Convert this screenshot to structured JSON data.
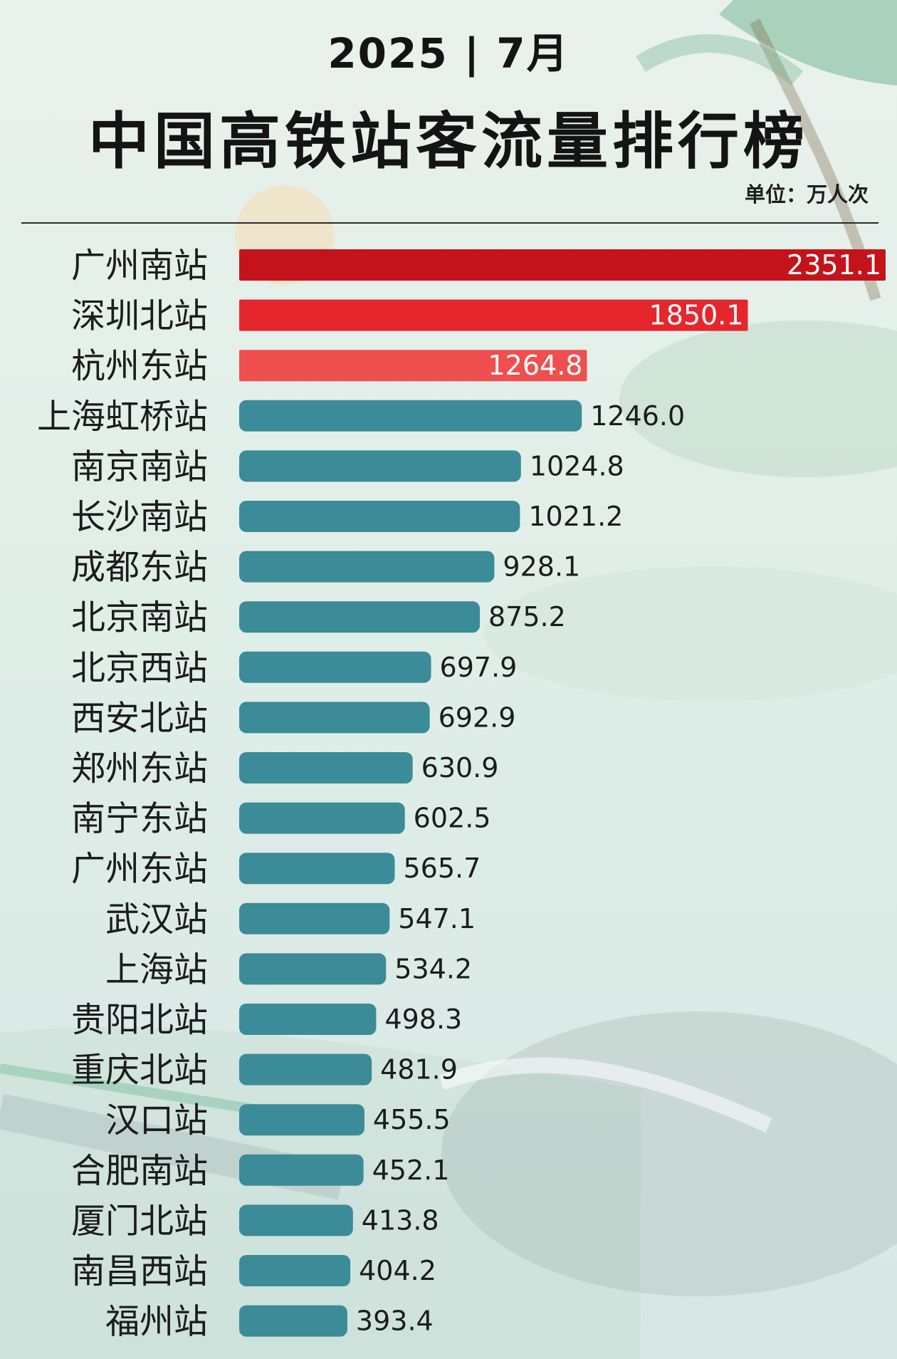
{
  "header": {
    "year_month": "2025 | 7月",
    "title": "中国高铁站客流量排行榜",
    "unit": "单位：万人次"
  },
  "colors": {
    "rank1": "#c5131c",
    "rank2": "#e5262d",
    "rank3": "#ef4f4f",
    "default": "#3c8b98",
    "label": "#1c1c1c",
    "value_dark": "#1c1c1c",
    "value_light": "#ffffff"
  },
  "chart_data": {
    "type": "bar",
    "orientation": "horizontal",
    "categories": [
      "广州南站",
      "深圳北站",
      "杭州东站",
      "上海虹桥站",
      "南京南站",
      "长沙南站",
      "成都东站",
      "北京南站",
      "北京西站",
      "西安北站",
      "郑州东站",
      "南宁东站",
      "广州东站",
      "武汉站",
      "上海站",
      "贵阳北站",
      "重庆北站",
      "汉口站",
      "合肥南站",
      "厦门北站",
      "南昌西站",
      "福州站"
    ],
    "values": [
      2351.1,
      1850.1,
      1264.8,
      1246.0,
      1024.8,
      1021.2,
      928.1,
      875.2,
      697.9,
      692.9,
      630.9,
      602.5,
      565.7,
      547.1,
      534.2,
      498.3,
      481.9,
      455.5,
      452.1,
      413.8,
      404.2,
      393.4
    ],
    "value_labels": [
      "2351.1",
      "1850.1",
      "1264.8",
      "1246.0",
      "1024.8",
      "1021.2",
      "928.1",
      "875.2",
      "697.9",
      "692.9",
      "630.9",
      "602.5",
      "565.7",
      "547.1",
      "534.2",
      "498.3",
      "481.9",
      "455.5",
      "452.1",
      "413.8",
      "404.2",
      "393.4"
    ],
    "xlim": [
      0,
      2351.1
    ],
    "title": "中国高铁站客流量排行榜",
    "xlabel": "",
    "ylabel": "",
    "grid": false,
    "legend": "none"
  }
}
